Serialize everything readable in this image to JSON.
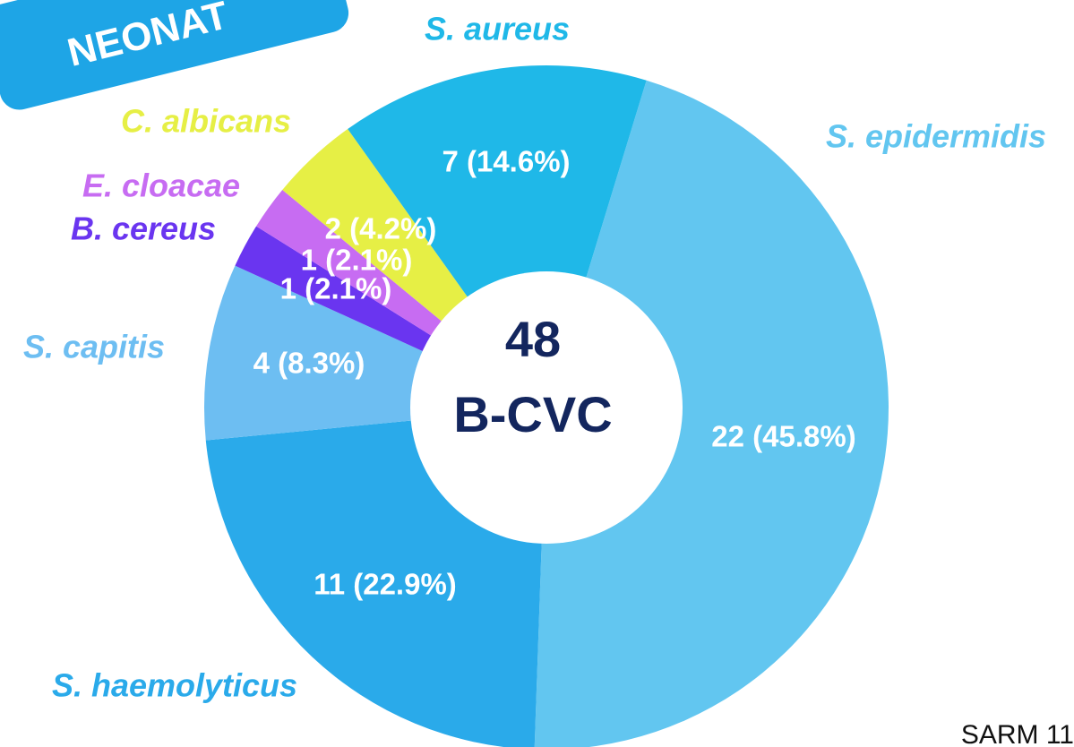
{
  "badge": "NEONAT",
  "footnote": "SARM 11",
  "chart_data": {
    "type": "donut",
    "center_value": 48,
    "center_label": "B-CVC",
    "categories": [
      "S. epidermidis",
      "S. haemolyticus",
      "S. capitis",
      "B. cereus",
      "E. cloacae",
      "C. albicans",
      "S. aureus"
    ],
    "values": [
      22,
      11,
      4,
      1,
      1,
      2,
      7
    ],
    "value_labels": [
      "22 (45.8%)",
      "11 (22.9%)",
      "4 (8.3%)",
      "1 (2.1%)",
      "1 (2.1%)",
      "2 (4.2%)",
      "7 (14.6%)"
    ],
    "colors": [
      "#62c6f0",
      "#2aaaea",
      "#6dbef2",
      "#6a35f0",
      "#c76cf2",
      "#e6ef45",
      "#1fb8e8"
    ]
  }
}
